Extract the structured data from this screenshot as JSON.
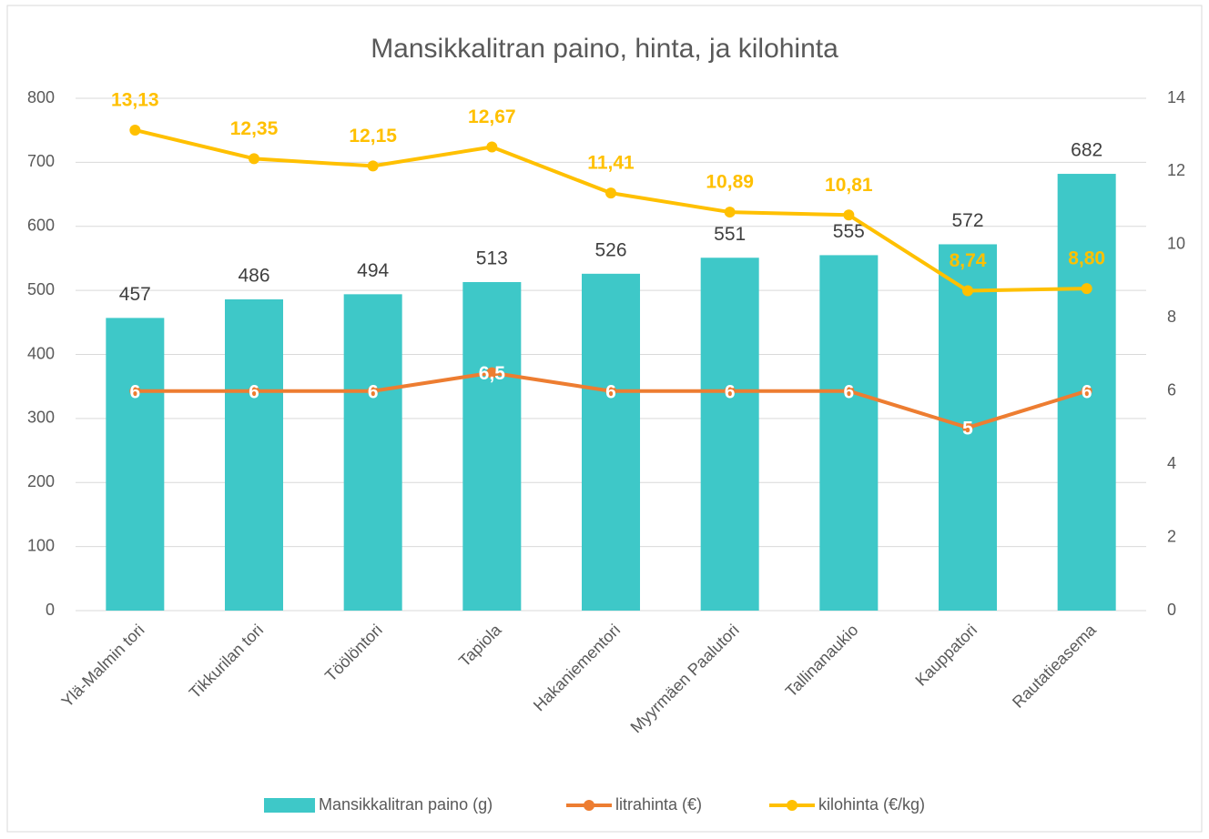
{
  "chart_data": {
    "type": "bar",
    "title": "Mansikkalitran paino, hinta, ja kilohinta",
    "categories": [
      "Ylä-Malmin tori",
      "Tikkurilan tori",
      "Töölöntori",
      "Tapiola",
      "Hakaniementori",
      "Myyrmäen Paalutori",
      "Tallinanaukio",
      "Kauppatori",
      "Rautatieasema"
    ],
    "series": [
      {
        "name": "Mansikkalitran paino (g)",
        "type": "bar",
        "color": "#3ec8c8",
        "values": [
          457,
          486,
          494,
          513,
          526,
          551,
          555,
          572,
          682
        ]
      },
      {
        "name": "litrahinta (€)",
        "type": "line",
        "axis": "y2",
        "color": "#ed7d31",
        "values": [
          6,
          6,
          6,
          6.5,
          6,
          6,
          6,
          5,
          6
        ],
        "value_labels": [
          "6",
          "6",
          "6",
          "6,5",
          "6",
          "6",
          "6",
          "5",
          "6"
        ]
      },
      {
        "name": "kilohinta (€/kg)",
        "type": "line",
        "axis": "y2",
        "color": "#ffc000",
        "values": [
          13.13,
          12.35,
          12.15,
          12.67,
          11.41,
          10.89,
          10.81,
          8.74,
          8.8
        ],
        "value_labels": [
          "13,13",
          "12,35",
          "12,15",
          "12,67",
          "11,41",
          "10,89",
          "10,81",
          "8,74",
          "8,80"
        ]
      }
    ],
    "ylim": [
      0,
      800
    ],
    "yticks": [
      0,
      100,
      200,
      300,
      400,
      500,
      600,
      700,
      800
    ],
    "y2lim": [
      0,
      14
    ],
    "y2ticks": [
      0,
      2,
      4,
      6,
      8,
      10,
      12,
      14
    ],
    "grid": true,
    "legend": "bottom"
  }
}
